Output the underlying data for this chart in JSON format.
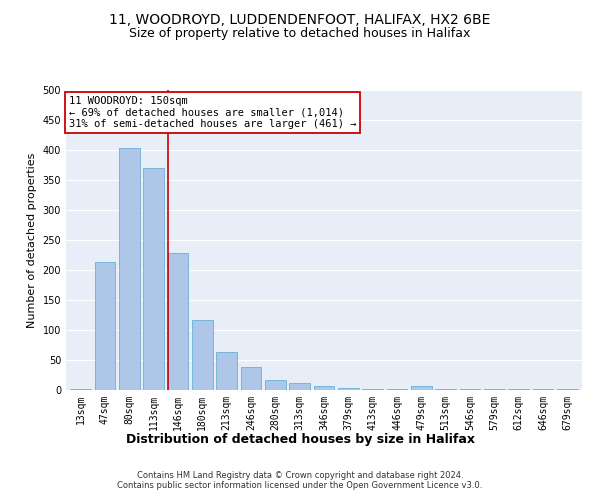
{
  "title1": "11, WOODROYD, LUDDENDENFOOT, HALIFAX, HX2 6BE",
  "title2": "Size of property relative to detached houses in Halifax",
  "xlabel": "Distribution of detached houses by size in Halifax",
  "ylabel": "Number of detached properties",
  "categories": [
    "13sqm",
    "47sqm",
    "80sqm",
    "113sqm",
    "146sqm",
    "180sqm",
    "213sqm",
    "246sqm",
    "280sqm",
    "313sqm",
    "346sqm",
    "379sqm",
    "413sqm",
    "446sqm",
    "479sqm",
    "513sqm",
    "546sqm",
    "579sqm",
    "612sqm",
    "646sqm",
    "679sqm"
  ],
  "values": [
    2,
    213,
    404,
    370,
    228,
    117,
    64,
    38,
    17,
    12,
    7,
    4,
    1,
    1,
    6,
    1,
    1,
    1,
    1,
    1,
    2
  ],
  "bar_color": "#aec6e8",
  "bar_edgecolor": "#6baed6",
  "vline_color": "#cc0000",
  "vline_x_index": 4,
  "annotation_text": "11 WOODROYD: 150sqm\n← 69% of detached houses are smaller (1,014)\n31% of semi-detached houses are larger (461) →",
  "annotation_boxcolor": "white",
  "annotation_edgecolor": "#cc0000",
  "footnote": "Contains HM Land Registry data © Crown copyright and database right 2024.\nContains public sector information licensed under the Open Government Licence v3.0.",
  "ylim": [
    0,
    500
  ],
  "bg_color": "#e8eef8",
  "grid_color": "#ffffff",
  "title1_fontsize": 10,
  "title2_fontsize": 9,
  "xlabel_fontsize": 9,
  "ylabel_fontsize": 8,
  "tick_fontsize": 7,
  "annot_fontsize": 7.5,
  "footnote_fontsize": 6
}
